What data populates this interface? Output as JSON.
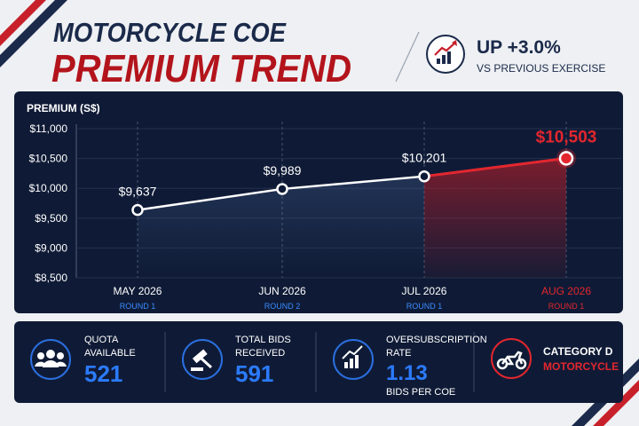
{
  "header": {
    "title_line1": "MOTORCYCLE COE",
    "title_line2": "PREMIUM TREND",
    "change": "UP +3.0%",
    "change_note": "VS PREVIOUS EXERCISE"
  },
  "chart_data": {
    "type": "line",
    "y_label": "PREMIUM (S$)",
    "categories": [
      "MAY 2026",
      "JUN 2026",
      "JUL 2026",
      "AUG 2026"
    ],
    "category_sublabels": [
      "ROUND 1",
      "ROUND 2",
      "ROUND 1",
      "ROUND 1"
    ],
    "series": [
      {
        "name": "Premium",
        "color": "#ffffff",
        "highlight_color": "#e3262e",
        "values": [
          9637,
          9989,
          10201,
          10503
        ],
        "value_labels": [
          "$9,637",
          "$9,989",
          "$10,201",
          "$10,503"
        ]
      }
    ],
    "ylim": [
      8500,
      11000
    ],
    "yticks": [
      {
        "value": 8500,
        "label": "$8,500"
      },
      {
        "value": 9000,
        "label": "$9,000"
      },
      {
        "value": 9500,
        "label": "$9,500"
      },
      {
        "value": 10000,
        "label": "$10,000"
      },
      {
        "value": 10500,
        "label": "$10,500"
      },
      {
        "value": 11000,
        "label": "$11,000"
      }
    ],
    "grid": true
  },
  "stats": [
    {
      "label_lines": [
        "QUOTA",
        "AVAILABLE"
      ],
      "value": 521
    },
    {
      "label_lines": [
        "TOTAL BIDS",
        "RECEIVED"
      ],
      "value": 591
    },
    {
      "label_lines": [
        "OVERSUBSCRIPTION",
        "RATE"
      ],
      "value": 1.13,
      "unit": "BIDS PER COE"
    },
    {
      "label_lines": [
        "CATEGORY D"
      ],
      "sublabel": "MOTORCYCLE"
    }
  ]
}
